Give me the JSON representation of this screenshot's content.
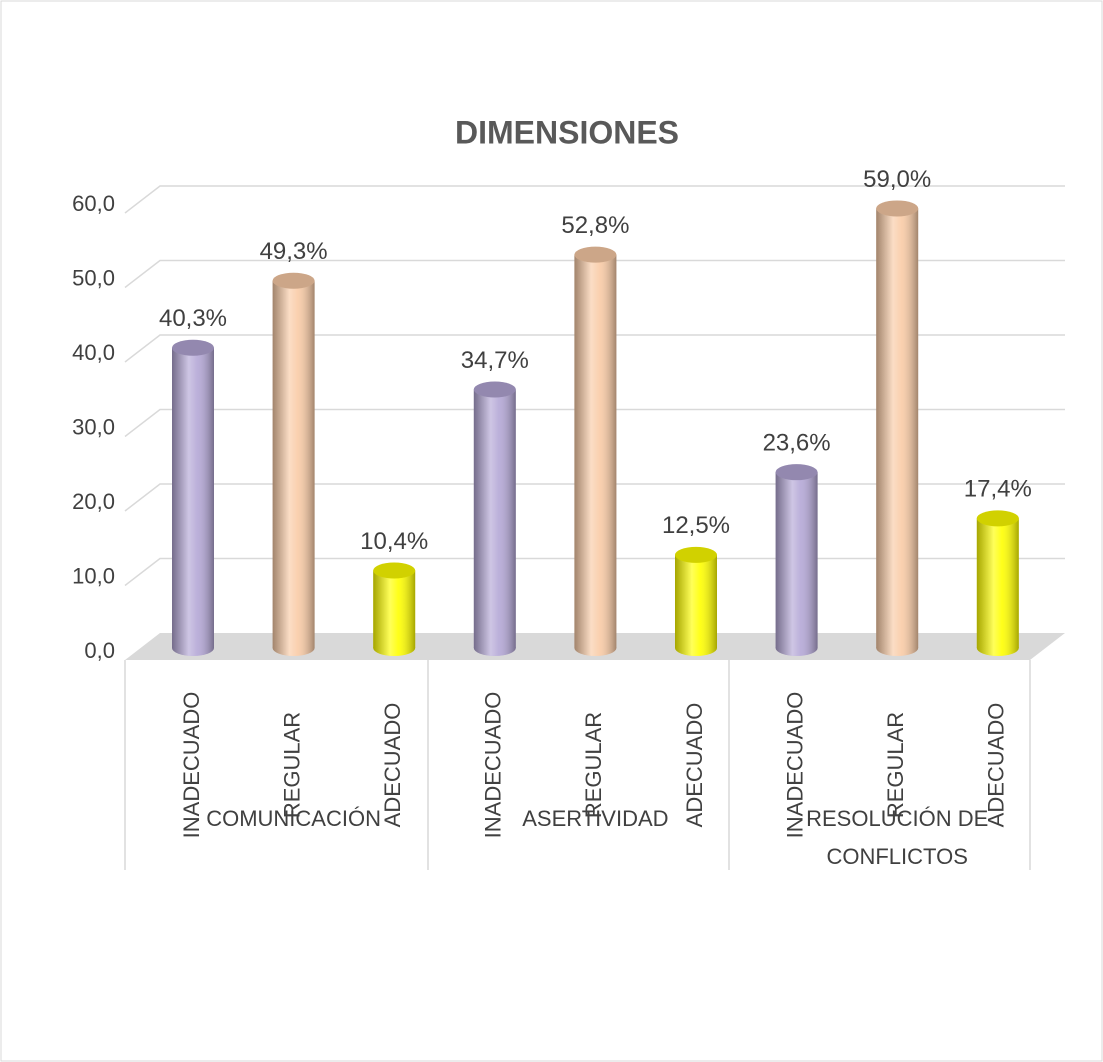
{
  "chart_data": {
    "type": "bar",
    "title": "DIMENSIONES",
    "groups": [
      {
        "name": "COMUNICACIÓN",
        "categories": [
          "INADECUADO",
          "REGULAR",
          "ADECUADO"
        ],
        "values": [
          40.3,
          49.3,
          10.4
        ],
        "value_labels": [
          "40,3%",
          "49,3%",
          "10,4%"
        ]
      },
      {
        "name": "ASERTIVIDAD",
        "categories": [
          "INADECUADO",
          "REGULAR",
          "ADECUADO"
        ],
        "values": [
          34.7,
          52.8,
          12.5
        ],
        "value_labels": [
          "34,7%",
          "52,8%",
          "12,5%"
        ]
      },
      {
        "name": "RESOLUCIÓN DE CONFLICTOS",
        "categories": [
          "INADECUADO",
          "REGULAR",
          "ADECUADO"
        ],
        "values": [
          23.6,
          59.0,
          17.4
        ],
        "value_labels": [
          "23,6%",
          "59,0%",
          "17,4%"
        ]
      }
    ],
    "colors": [
      "#b4a7d6",
      "#f9cba6",
      "#ffff00"
    ],
    "ylim": [
      0,
      60
    ],
    "yticks": [
      {
        "value": 0,
        "label": "0,0"
      },
      {
        "value": 10,
        "label": "10,0"
      },
      {
        "value": 20,
        "label": "20,0"
      },
      {
        "value": 30,
        "label": "30,0"
      },
      {
        "value": 40,
        "label": "40,0"
      },
      {
        "value": 50,
        "label": "50,0"
      },
      {
        "value": 60,
        "label": "60,0"
      }
    ],
    "grid": true
  }
}
